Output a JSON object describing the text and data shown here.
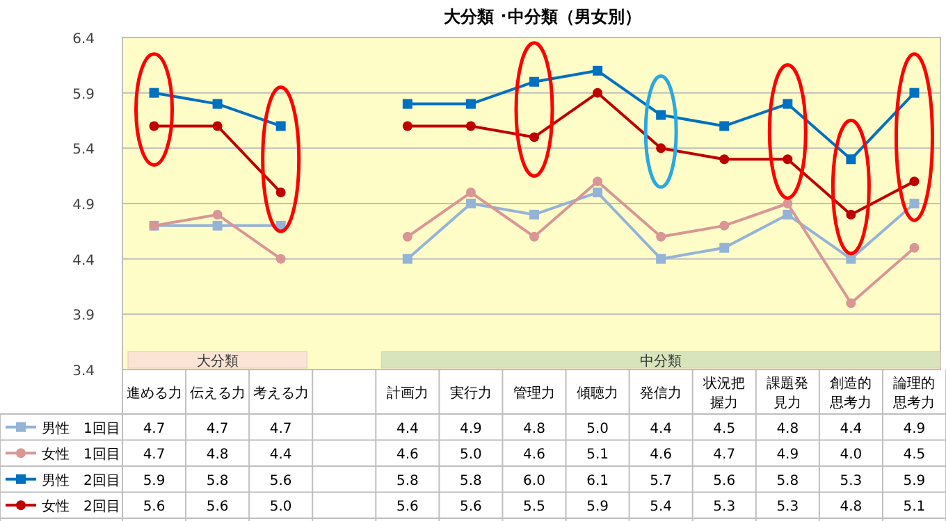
{
  "chart_data": {
    "type": "line",
    "title": "大分類 ･中分類（男女別）",
    "categories": [
      "進める力",
      "伝える力",
      "考える力",
      null,
      "計画力",
      "実行力",
      "管理力",
      "傾聴力",
      "発信力",
      "状況把握力",
      "課題発見力",
      "創造的思考力",
      "論理的思考力"
    ],
    "series": [
      {
        "name": "男性　1回目",
        "color": "#95b3d7",
        "marker": "square",
        "values": [
          4.7,
          4.7,
          4.7,
          null,
          4.4,
          4.9,
          4.8,
          5.0,
          4.4,
          4.5,
          4.8,
          4.4,
          4.9
        ],
        "value_labels": [
          "4.7",
          "4.7",
          "4.7",
          null,
          "4.4",
          "4.9",
          "4.8",
          "5.0",
          "4.4",
          "4.5",
          "4.8",
          "4.4",
          "4.9"
        ]
      },
      {
        "name": "女性　1回目",
        "color": "#d99694",
        "marker": "circle",
        "values": [
          4.7,
          4.8,
          4.4,
          null,
          4.6,
          5.0,
          4.6,
          5.1,
          4.6,
          4.7,
          4.9,
          4.0,
          4.5
        ],
        "value_labels": [
          "4.7",
          "4.8",
          "4.4",
          null,
          "4.6",
          "5.0",
          "4.6",
          "5.1",
          "4.6",
          "4.7",
          "4.9",
          "4.0",
          "4.5"
        ]
      },
      {
        "name": "男性　2回目",
        "color": "#0070c0",
        "marker": "square",
        "values": [
          5.9,
          5.8,
          5.6,
          null,
          5.8,
          5.8,
          6.0,
          6.1,
          5.7,
          5.6,
          5.8,
          5.3,
          5.9
        ],
        "value_labels": [
          "5.9",
          "5.8",
          "5.6",
          null,
          "5.8",
          "5.8",
          "6.0",
          "6.1",
          "5.7",
          "5.6",
          "5.8",
          "5.3",
          "5.9"
        ]
      },
      {
        "name": "女性　2回目",
        "color": "#c00000",
        "marker": "circle",
        "values": [
          5.6,
          5.6,
          5.0,
          null,
          5.6,
          5.6,
          5.5,
          5.9,
          5.4,
          5.3,
          5.3,
          4.8,
          5.1
        ],
        "value_labels": [
          "5.6",
          "5.6",
          "5.0",
          null,
          "5.6",
          "5.6",
          "5.5",
          "5.9",
          "5.4",
          "5.3",
          "5.3",
          "4.8",
          "5.1"
        ]
      }
    ],
    "ylim": [
      3.4,
      6.4
    ],
    "yticks": [
      3.4,
      3.9,
      4.4,
      4.9,
      5.4,
      5.9,
      6.4
    ],
    "grid": "y",
    "legend": "bottom",
    "annotations": [
      "大分類",
      "中分類"
    ]
  }
}
